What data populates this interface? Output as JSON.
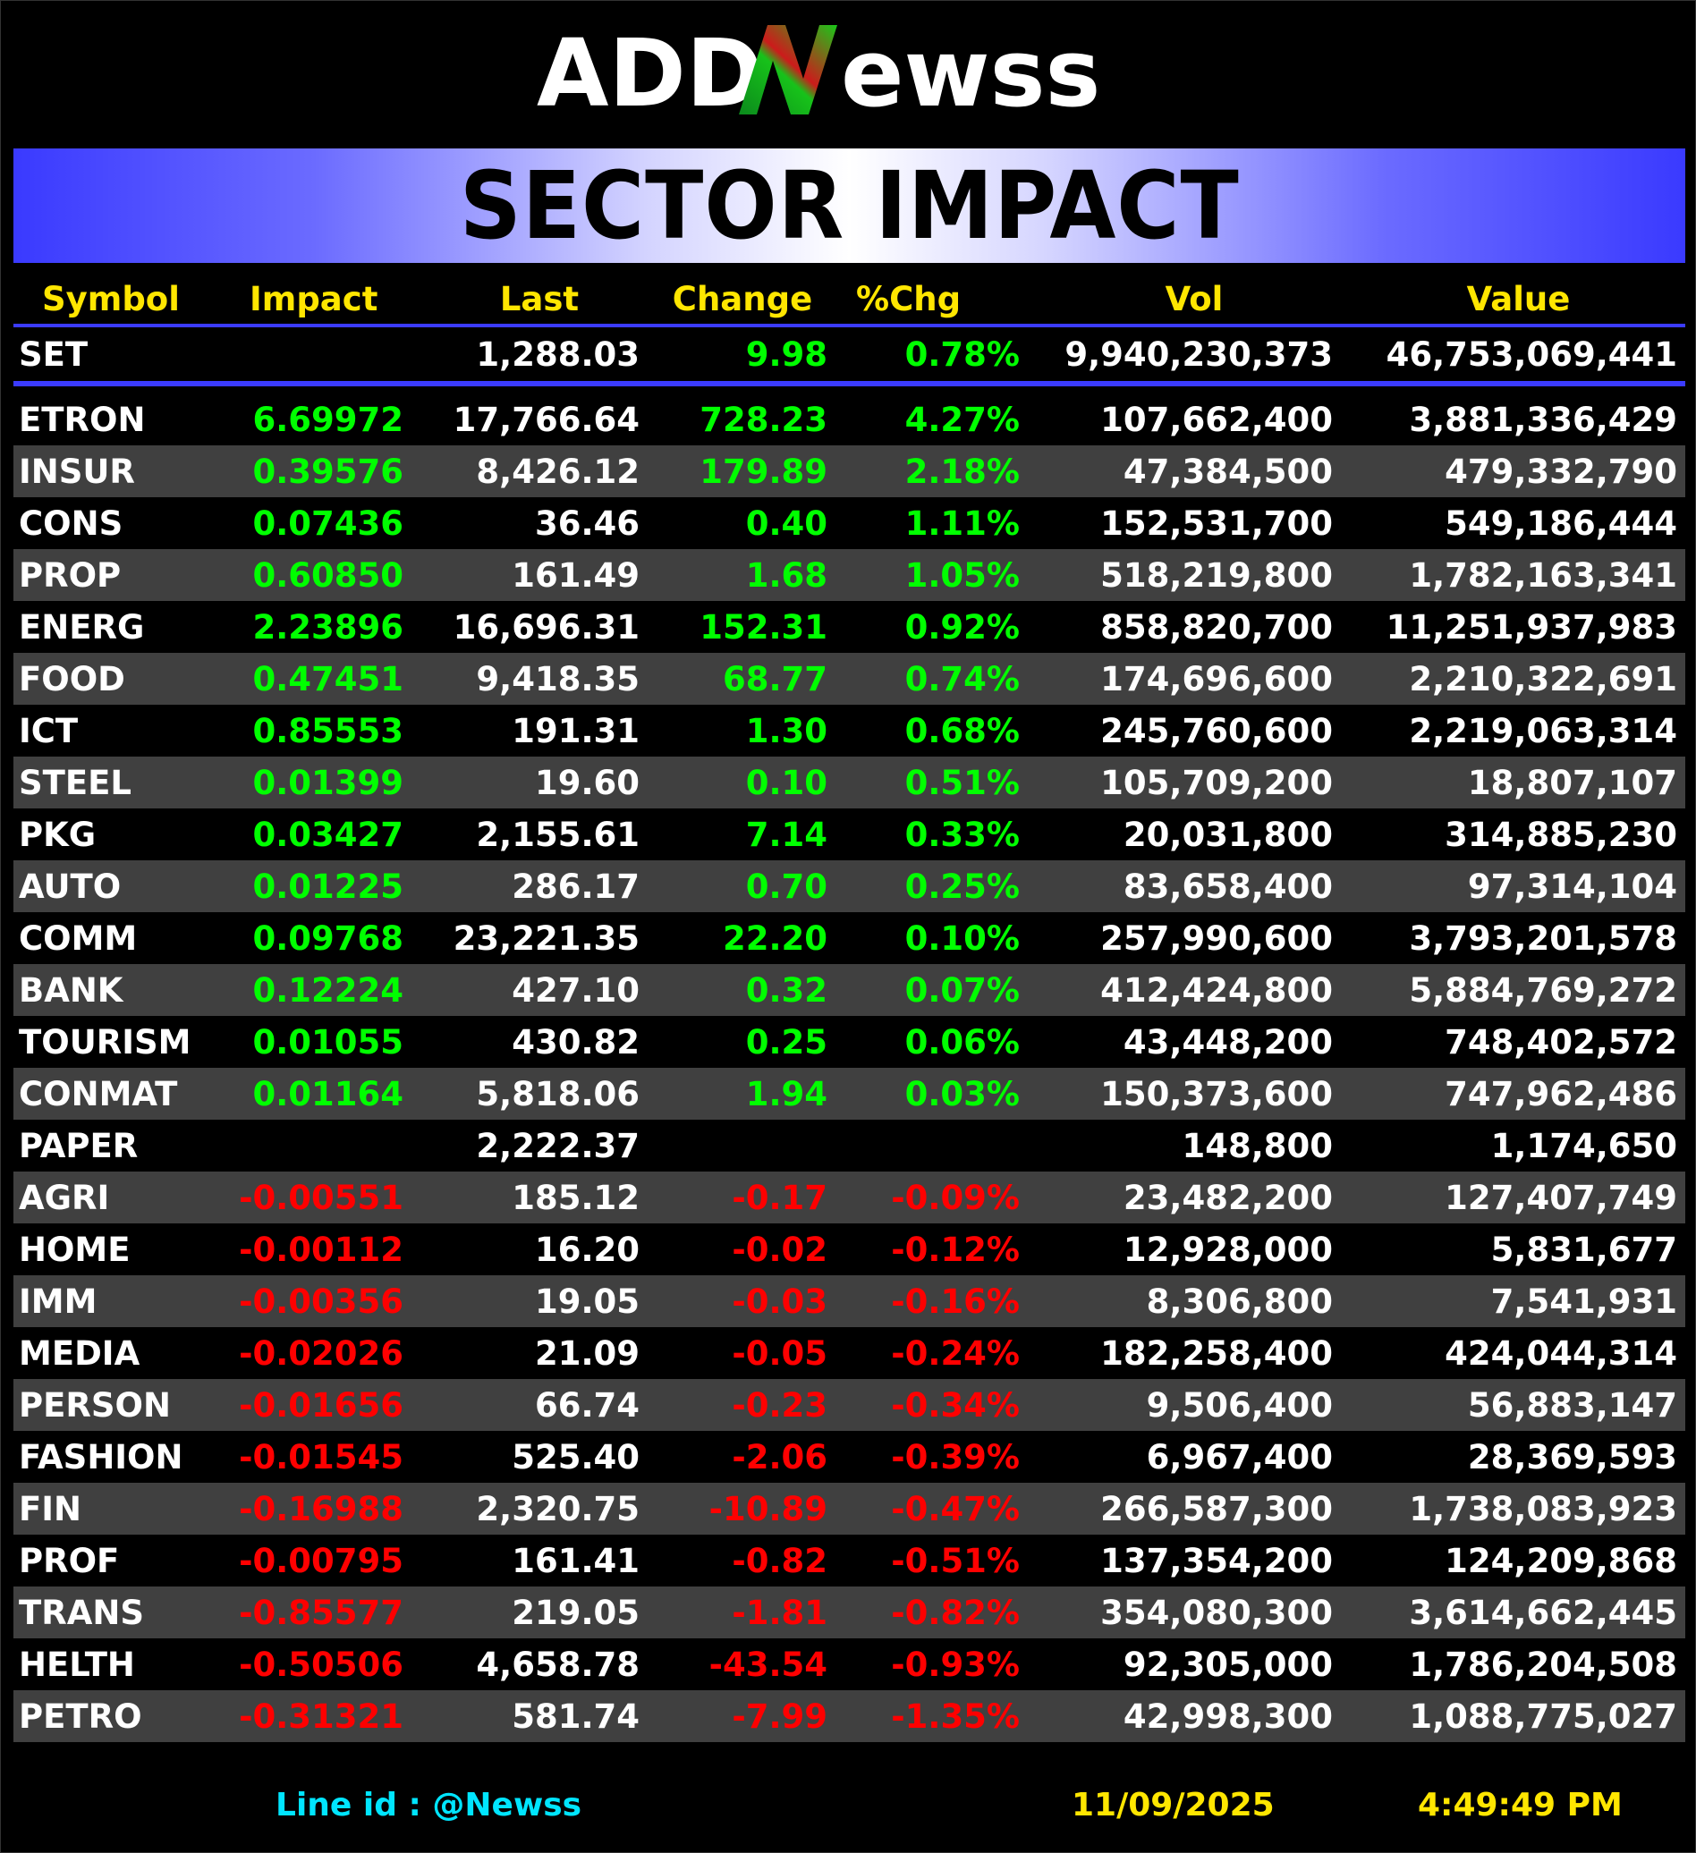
{
  "logo": {
    "text": "ADDNewss",
    "part1": "ADD",
    "part2": "N",
    "part3": "ewss"
  },
  "banner": {
    "title": "SECTOR IMPACT"
  },
  "colors": {
    "positive": "#00ff00",
    "negative": "#ff0000",
    "header": "#ffe600",
    "accent": "#3b3bff",
    "footer_link": "#00e5ff"
  },
  "columns": [
    "Symbol",
    "Impact",
    "Last",
    "Change",
    "%Chg",
    "Vol",
    "Value"
  ],
  "index": {
    "symbol": "SET",
    "impact": "",
    "last": "1,288.03",
    "change": "9.98",
    "pct": "0.78%",
    "vol": "9,940,230,373",
    "value": "46,753,069,441",
    "dir": "pos"
  },
  "rows": [
    {
      "symbol": "ETRON",
      "impact": "6.69972",
      "last": "17,766.64",
      "change": "728.23",
      "pct": "4.27%",
      "vol": "107,662,400",
      "value": "3,881,336,429",
      "dir": "pos"
    },
    {
      "symbol": "INSUR",
      "impact": "0.39576",
      "last": "8,426.12",
      "change": "179.89",
      "pct": "2.18%",
      "vol": "47,384,500",
      "value": "479,332,790",
      "dir": "pos"
    },
    {
      "symbol": "CONS",
      "impact": "0.07436",
      "last": "36.46",
      "change": "0.40",
      "pct": "1.11%",
      "vol": "152,531,700",
      "value": "549,186,444",
      "dir": "pos"
    },
    {
      "symbol": "PROP",
      "impact": "0.60850",
      "last": "161.49",
      "change": "1.68",
      "pct": "1.05%",
      "vol": "518,219,800",
      "value": "1,782,163,341",
      "dir": "pos"
    },
    {
      "symbol": "ENERG",
      "impact": "2.23896",
      "last": "16,696.31",
      "change": "152.31",
      "pct": "0.92%",
      "vol": "858,820,700",
      "value": "11,251,937,983",
      "dir": "pos"
    },
    {
      "symbol": "FOOD",
      "impact": "0.47451",
      "last": "9,418.35",
      "change": "68.77",
      "pct": "0.74%",
      "vol": "174,696,600",
      "value": "2,210,322,691",
      "dir": "pos"
    },
    {
      "symbol": "ICT",
      "impact": "0.85553",
      "last": "191.31",
      "change": "1.30",
      "pct": "0.68%",
      "vol": "245,760,600",
      "value": "2,219,063,314",
      "dir": "pos"
    },
    {
      "symbol": "STEEL",
      "impact": "0.01399",
      "last": "19.60",
      "change": "0.10",
      "pct": "0.51%",
      "vol": "105,709,200",
      "value": "18,807,107",
      "dir": "pos"
    },
    {
      "symbol": "PKG",
      "impact": "0.03427",
      "last": "2,155.61",
      "change": "7.14",
      "pct": "0.33%",
      "vol": "20,031,800",
      "value": "314,885,230",
      "dir": "pos"
    },
    {
      "symbol": "AUTO",
      "impact": "0.01225",
      "last": "286.17",
      "change": "0.70",
      "pct": "0.25%",
      "vol": "83,658,400",
      "value": "97,314,104",
      "dir": "pos"
    },
    {
      "symbol": "COMM",
      "impact": "0.09768",
      "last": "23,221.35",
      "change": "22.20",
      "pct": "0.10%",
      "vol": "257,990,600",
      "value": "3,793,201,578",
      "dir": "pos"
    },
    {
      "symbol": "BANK",
      "impact": "0.12224",
      "last": "427.10",
      "change": "0.32",
      "pct": "0.07%",
      "vol": "412,424,800",
      "value": "5,884,769,272",
      "dir": "pos"
    },
    {
      "symbol": "TOURISM",
      "impact": "0.01055",
      "last": "430.82",
      "change": "0.25",
      "pct": "0.06%",
      "vol": "43,448,200",
      "value": "748,402,572",
      "dir": "pos"
    },
    {
      "symbol": "CONMAT",
      "impact": "0.01164",
      "last": "5,818.06",
      "change": "1.94",
      "pct": "0.03%",
      "vol": "150,373,600",
      "value": "747,962,486",
      "dir": "pos"
    },
    {
      "symbol": "PAPER",
      "impact": "",
      "last": "2,222.37",
      "change": "",
      "pct": "",
      "vol": "148,800",
      "value": "1,174,650",
      "dir": "wht"
    },
    {
      "symbol": "AGRI",
      "impact": "-0.00551",
      "last": "185.12",
      "change": "-0.17",
      "pct": "-0.09%",
      "vol": "23,482,200",
      "value": "127,407,749",
      "dir": "neg"
    },
    {
      "symbol": "HOME",
      "impact": "-0.00112",
      "last": "16.20",
      "change": "-0.02",
      "pct": "-0.12%",
      "vol": "12,928,000",
      "value": "5,831,677",
      "dir": "neg"
    },
    {
      "symbol": "IMM",
      "impact": "-0.00356",
      "last": "19.05",
      "change": "-0.03",
      "pct": "-0.16%",
      "vol": "8,306,800",
      "value": "7,541,931",
      "dir": "neg"
    },
    {
      "symbol": "MEDIA",
      "impact": "-0.02026",
      "last": "21.09",
      "change": "-0.05",
      "pct": "-0.24%",
      "vol": "182,258,400",
      "value": "424,044,314",
      "dir": "neg"
    },
    {
      "symbol": "PERSON",
      "impact": "-0.01656",
      "last": "66.74",
      "change": "-0.23",
      "pct": "-0.34%",
      "vol": "9,506,400",
      "value": "56,883,147",
      "dir": "neg"
    },
    {
      "symbol": "FASHION",
      "impact": "-0.01545",
      "last": "525.40",
      "change": "-2.06",
      "pct": "-0.39%",
      "vol": "6,967,400",
      "value": "28,369,593",
      "dir": "neg"
    },
    {
      "symbol": "FIN",
      "impact": "-0.16988",
      "last": "2,320.75",
      "change": "-10.89",
      "pct": "-0.47%",
      "vol": "266,587,300",
      "value": "1,738,083,923",
      "dir": "neg"
    },
    {
      "symbol": "PROF",
      "impact": "-0.00795",
      "last": "161.41",
      "change": "-0.82",
      "pct": "-0.51%",
      "vol": "137,354,200",
      "value": "124,209,868",
      "dir": "neg"
    },
    {
      "symbol": "TRANS",
      "impact": "-0.85577",
      "last": "219.05",
      "change": "-1.81",
      "pct": "-0.82%",
      "vol": "354,080,300",
      "value": "3,614,662,445",
      "dir": "neg"
    },
    {
      "symbol": "HELTH",
      "impact": "-0.50506",
      "last": "4,658.78",
      "change": "-43.54",
      "pct": "-0.93%",
      "vol": "92,305,000",
      "value": "1,786,204,508",
      "dir": "neg"
    },
    {
      "symbol": "PETRO",
      "impact": "-0.31321",
      "last": "581.74",
      "change": "-7.99",
      "pct": "-1.35%",
      "vol": "42,998,300",
      "value": "1,088,775,027",
      "dir": "neg"
    }
  ],
  "footer": {
    "line_id": "Line id  : @Newss",
    "date": "11/09/2025",
    "time": "4:49:49 PM"
  }
}
